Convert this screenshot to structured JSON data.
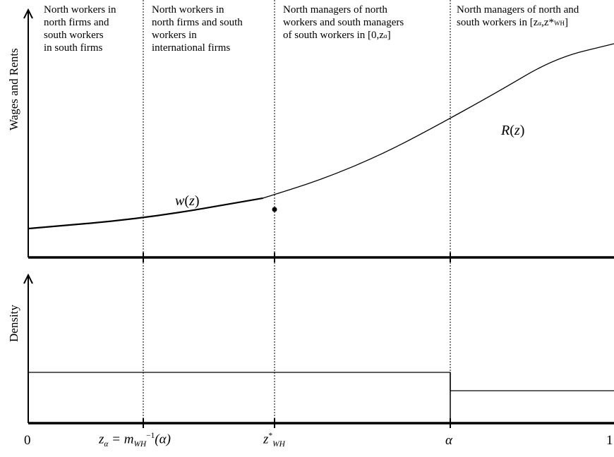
{
  "regions": [
    {
      "text": "North workers in\nnorth firms and\nsouth workers\nin south firms"
    },
    {
      "text": "North workers in\nnorth firms and south\nworkers in\ninternational firms"
    },
    {
      "text": "North managers of north\nworkers and south managers\nof south workers in [0,z"
    },
    {
      "text": "North managers of north and\nsouth workers in [z"
    }
  ],
  "region3_tail": {
    "sub": "α",
    "close": "]"
  },
  "region4_tail": {
    "a": "α",
    "comma": ",z*",
    "wh": "WH",
    "close": "]"
  },
  "y_axis_top": "Wages and Rents",
  "y_axis_bottom": "Density",
  "curve_labels": {
    "w": "w",
    "w_arg": "(z)",
    "r": "R",
    "r_arg": "(z)"
  },
  "x_ticks": {
    "zero": "0",
    "one": "1",
    "z_alpha_lhs": "z",
    "z_alpha_sub": "α",
    "z_alpha_eq": " = m",
    "z_alpha_m_sub": "WH",
    "z_alpha_sup": "−1",
    "z_alpha_arg": "(α)",
    "z_star": "z",
    "z_star_sup": "*",
    "z_star_sub": "WH",
    "alpha": "α"
  },
  "chart_data": {
    "type": "line",
    "title": "",
    "panels": [
      {
        "name": "wages-and-rents",
        "ylabel": "Wages and Rents",
        "series": [
          {
            "name": "w(z)",
            "x": [
              0,
              0.201,
              0.401
            ],
            "y": [
              0.09,
              0.14,
              0.24
            ]
          },
          {
            "name": "R(z)",
            "x": [
              0.401,
              0.5,
              0.6,
              0.687,
              0.8,
              0.9,
              1.0
            ],
            "y": [
              0.24,
              0.33,
              0.45,
              0.58,
              0.76,
              0.93,
              1.0
            ]
          }
        ],
        "xlim": [
          0,
          1
        ]
      },
      {
        "name": "density",
        "ylabel": "Density",
        "series": [
          {
            "name": "density",
            "x": [
              0,
              0.687,
              0.687,
              1.0
            ],
            "y": [
              0.36,
              0.36,
              0.2,
              0.2
            ]
          }
        ],
        "xlim": [
          0,
          1
        ]
      }
    ],
    "x_ticks": [
      "0",
      "z_α = m_WH^-1(α)",
      "z*_WH",
      "α",
      "1"
    ],
    "x_tick_values": [
      0,
      0.201,
      0.401,
      0.687,
      1.0
    ]
  }
}
